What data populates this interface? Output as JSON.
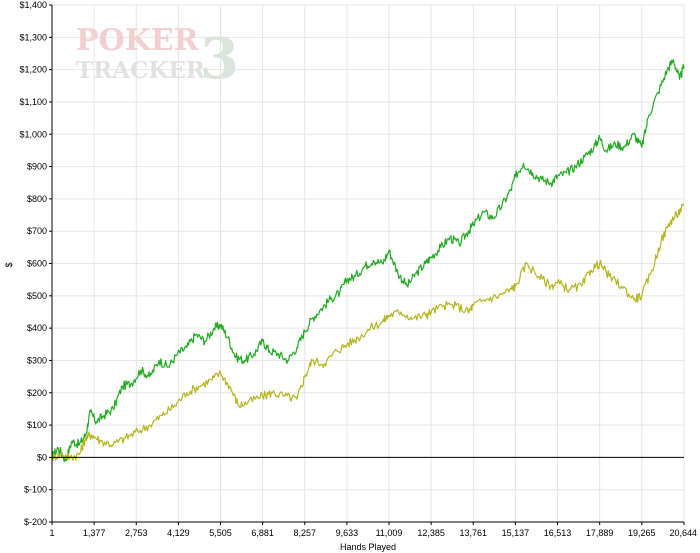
{
  "watermark": {
    "line1": "POKER",
    "line2": "TRACKER",
    "version": "3"
  },
  "colors": {
    "background": "#ffffff",
    "grid": "#e6e6e6",
    "axis": "#000000",
    "zero_line": "#000000",
    "watermark_red": "#f3cfcf",
    "watermark_green": "#d9e6d9",
    "watermark_gray": "#e2e2e2"
  },
  "chart_data": {
    "type": "line",
    "title": "",
    "xlabel": "Hands Played",
    "ylabel": "$",
    "xlim": [
      1,
      20644
    ],
    "ylim": [
      -200,
      1400
    ],
    "grid": true,
    "legend": "none",
    "x_tick_labels": [
      "1",
      "1,377",
      "2,753",
      "4,129",
      "5,505",
      "6,881",
      "8,257",
      "9,633",
      "11,009",
      "12,385",
      "13,761",
      "15,137",
      "16,513",
      "17,889",
      "19,265",
      "20,644"
    ],
    "y_tick_labels": [
      "$1,400",
      "$1,300",
      "$1,200",
      "$1,100",
      "$1,000",
      "$900",
      "$800",
      "$700",
      "$600",
      "$500",
      "$400",
      "$300",
      "$200",
      "$100",
      "$0",
      "$-100",
      "$-200"
    ],
    "x_ticks": [
      1,
      1377,
      2753,
      4129,
      5505,
      6881,
      8257,
      9633,
      11009,
      12385,
      13761,
      15137,
      16513,
      17889,
      19265,
      20644
    ],
    "y_ticks": [
      1400,
      1300,
      1200,
      1100,
      1000,
      900,
      800,
      700,
      600,
      500,
      400,
      300,
      200,
      100,
      0,
      -100,
      -200
    ],
    "series": [
      {
        "color": "#22aa22",
        "x": [
          1,
          200,
          450,
          650,
          900,
          1100,
          1250,
          1450,
          1700,
          2000,
          2300,
          2600,
          2900,
          3200,
          3500,
          3800,
          4100,
          4400,
          4700,
          5000,
          5300,
          5505,
          5750,
          6000,
          6300,
          6600,
          6881,
          7100,
          7400,
          7700,
          8000,
          8257,
          8500,
          8800,
          9100,
          9400,
          9633,
          9900,
          10200,
          10500,
          10800,
          11009,
          11300,
          11600,
          11900,
          12200,
          12385,
          12700,
          13000,
          13300,
          13600,
          13761,
          14100,
          14400,
          14700,
          15000,
          15137,
          15400,
          15700,
          16000,
          16300,
          16513,
          16800,
          17100,
          17400,
          17700,
          17889,
          18100,
          18400,
          18700,
          19000,
          19265,
          19500,
          19800,
          20100,
          20300,
          20500,
          20644
        ],
        "y": [
          0,
          30,
          -10,
          50,
          40,
          70,
          140,
          110,
          130,
          150,
          220,
          230,
          270,
          250,
          300,
          280,
          320,
          340,
          380,
          360,
          400,
          410,
          370,
          310,
          300,
          320,
          360,
          330,
          320,
          300,
          340,
          390,
          430,
          460,
          490,
          510,
          550,
          560,
          590,
          610,
          600,
          640,
          570,
          530,
          570,
          600,
          620,
          650,
          680,
          660,
          700,
          720,
          760,
          740,
          780,
          830,
          870,
          910,
          880,
          860,
          850,
          870,
          880,
          900,
          930,
          960,
          990,
          950,
          970,
          960,
          1000,
          960,
          1060,
          1130,
          1200,
          1230,
          1170,
          1210
        ]
      },
      {
        "color": "#b5b520",
        "x": [
          1,
          300,
          600,
          900,
          1100,
          1300,
          1600,
          2000,
          2400,
          2800,
          3200,
          3600,
          4000,
          4400,
          4800,
          5200,
          5505,
          5800,
          6100,
          6400,
          6881,
          7200,
          7600,
          8000,
          8257,
          8500,
          8900,
          9300,
          9633,
          10000,
          10400,
          10800,
          11009,
          11400,
          11800,
          12200,
          12385,
          12800,
          13200,
          13600,
          13761,
          14200,
          14600,
          15000,
          15137,
          15500,
          15900,
          16300,
          16513,
          16900,
          17300,
          17600,
          17889,
          18200,
          18600,
          19000,
          19265,
          19600,
          19900,
          20200,
          20400,
          20644
        ],
        "y": [
          0,
          10,
          0,
          10,
          60,
          70,
          50,
          40,
          60,
          80,
          100,
          130,
          160,
          200,
          220,
          240,
          260,
          220,
          160,
          170,
          190,
          200,
          190,
          180,
          250,
          300,
          290,
          330,
          350,
          370,
          400,
          420,
          440,
          450,
          430,
          440,
          450,
          470,
          470,
          450,
          470,
          490,
          500,
          520,
          530,
          600,
          560,
          530,
          540,
          520,
          530,
          580,
          600,
          560,
          530,
          490,
          500,
          580,
          670,
          730,
          750,
          780
        ]
      }
    ]
  }
}
